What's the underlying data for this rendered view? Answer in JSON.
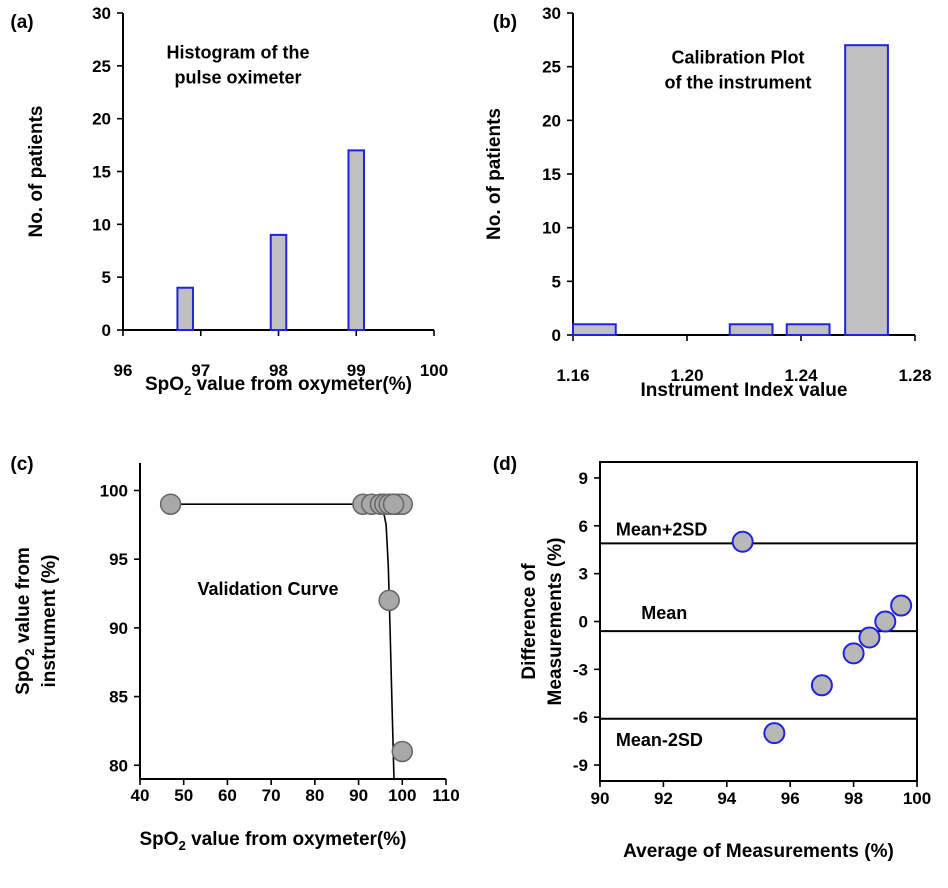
{
  "chart_data": [
    {
      "panel": "(a)",
      "type": "bar",
      "title": "Histogram of the\npulse oximeter",
      "xlabel": "SpO₂ value from oxymeter(%)",
      "ylabel": "No. of patients",
      "xlim": [
        96,
        100
      ],
      "ylim": [
        0,
        30
      ],
      "xticks": [
        96,
        97,
        98,
        99,
        100
      ],
      "yticks": [
        0,
        5,
        10,
        15,
        20,
        25,
        30
      ],
      "bar_width": 0.2,
      "x": [
        96.8,
        98,
        99
      ],
      "values": [
        4,
        9,
        17
      ],
      "bar_fill": "#c0c0c0",
      "bar_edge": "#2222dd"
    },
    {
      "panel": "(b)",
      "type": "bar",
      "title": "Calibration Plot\nof the instrument",
      "xlabel": "Instrument Index value",
      "ylabel": "No. of patients",
      "xlim": [
        1.16,
        1.28
      ],
      "ylim": [
        0,
        30
      ],
      "xticks": [
        "1.16",
        "1.20",
        "1.24",
        "1.28"
      ],
      "yticks": [
        0,
        5,
        10,
        15,
        20,
        25,
        30
      ],
      "bar_width": 0.015,
      "x": [
        1.1675,
        1.2225,
        1.2425,
        1.263
      ],
      "values": [
        1,
        1,
        1,
        27
      ],
      "bar_fill": "#c0c0c0",
      "bar_edge": "#2222dd"
    },
    {
      "panel": "(c)",
      "type": "scatter",
      "title": "Validation Curve",
      "xlabel": "SpO₂ value from oxymeter(%)",
      "ylabel": "SpO₂ value from\ninstrument (%)",
      "xlim": [
        40,
        110
      ],
      "ylim": [
        79,
        102
      ],
      "xticks": [
        40,
        50,
        60,
        70,
        80,
        90,
        100,
        110
      ],
      "yticks": [
        80,
        85,
        90,
        95,
        100
      ],
      "points": [
        [
          47,
          99
        ],
        [
          91,
          99
        ],
        [
          93,
          99
        ],
        [
          95,
          99
        ],
        [
          96,
          99
        ],
        [
          97,
          99
        ],
        [
          98,
          99
        ],
        [
          99,
          99
        ],
        [
          100,
          99
        ],
        [
          98,
          99
        ],
        [
          97,
          92
        ],
        [
          100,
          81
        ]
      ],
      "curve": [
        [
          47,
          99
        ],
        [
          94,
          99
        ],
        [
          95.5,
          98.8
        ],
        [
          96.3,
          97.5
        ],
        [
          96.8,
          94.5
        ],
        [
          97.2,
          90
        ],
        [
          97.6,
          85
        ],
        [
          98.1,
          79
        ]
      ],
      "marker_fill": "#a8a8a8",
      "marker_edge": "#666666"
    },
    {
      "panel": "(d)",
      "type": "scatter",
      "title": "",
      "xlabel": "Average of Measurements (%)",
      "ylabel": "Difference of\nMeasurements (%)",
      "xlim": [
        90,
        100
      ],
      "ylim": [
        -10,
        10
      ],
      "xticks": [
        90,
        92,
        94,
        96,
        98,
        100
      ],
      "yticks": [
        -9,
        -6,
        -3,
        0,
        3,
        6,
        9
      ],
      "points": [
        [
          94.5,
          5
        ],
        [
          95.5,
          -7
        ],
        [
          97,
          -4
        ],
        [
          98,
          -2
        ],
        [
          98.5,
          -1
        ],
        [
          99,
          0
        ],
        [
          99.5,
          1
        ]
      ],
      "hlines": [
        {
          "label": "Mean+2SD",
          "y": 4.9,
          "label_x": 90.5
        },
        {
          "label": "Mean",
          "y": -0.6,
          "label_x": 91.3
        },
        {
          "label": "Mean-2SD",
          "y": -6.1,
          "label_x": 90.5
        }
      ],
      "marker_fill": "#b8b8b8",
      "marker_edge": "#2222dd"
    }
  ]
}
